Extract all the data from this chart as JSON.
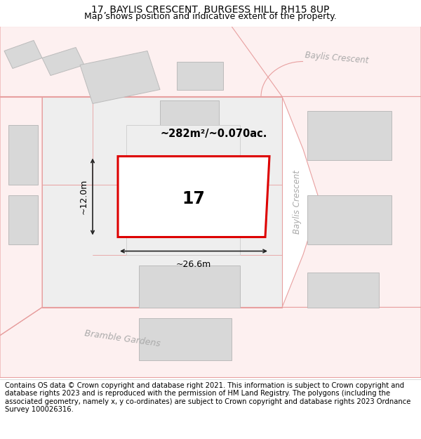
{
  "title": "17, BAYLIS CRESCENT, BURGESS HILL, RH15 8UP",
  "subtitle": "Map shows position and indicative extent of the property.",
  "footer": "Contains OS data © Crown copyright and database right 2021. This information is subject to Crown copyright and database rights 2023 and is reproduced with the permission of HM Land Registry. The polygons (including the associated geometry, namely x, y co-ordinates) are subject to Crown copyright and database rights 2023 Ordnance Survey 100026316.",
  "plot_outline_color": "#dd0000",
  "road_color": "#e8a0a0",
  "road_fill": "#fdf0f0",
  "building_color": "#d8d8d8",
  "building_outline": "#bbbbbb",
  "parcel_fill": "#eeeeee",
  "parcel_outline": "#cccccc",
  "dim_color": "#222222",
  "street_label_color": "#aaaaaa",
  "area_text": "~282m²/~0.070ac.",
  "number_text": "17",
  "dim_width": "~26.6m",
  "dim_height": "~12.0m",
  "baylis_crescent_label": "Baylis Crescent",
  "bramble_gardens_label": "Bramble Gardens",
  "title_fontsize": 10,
  "subtitle_fontsize": 9,
  "footer_fontsize": 7.2
}
